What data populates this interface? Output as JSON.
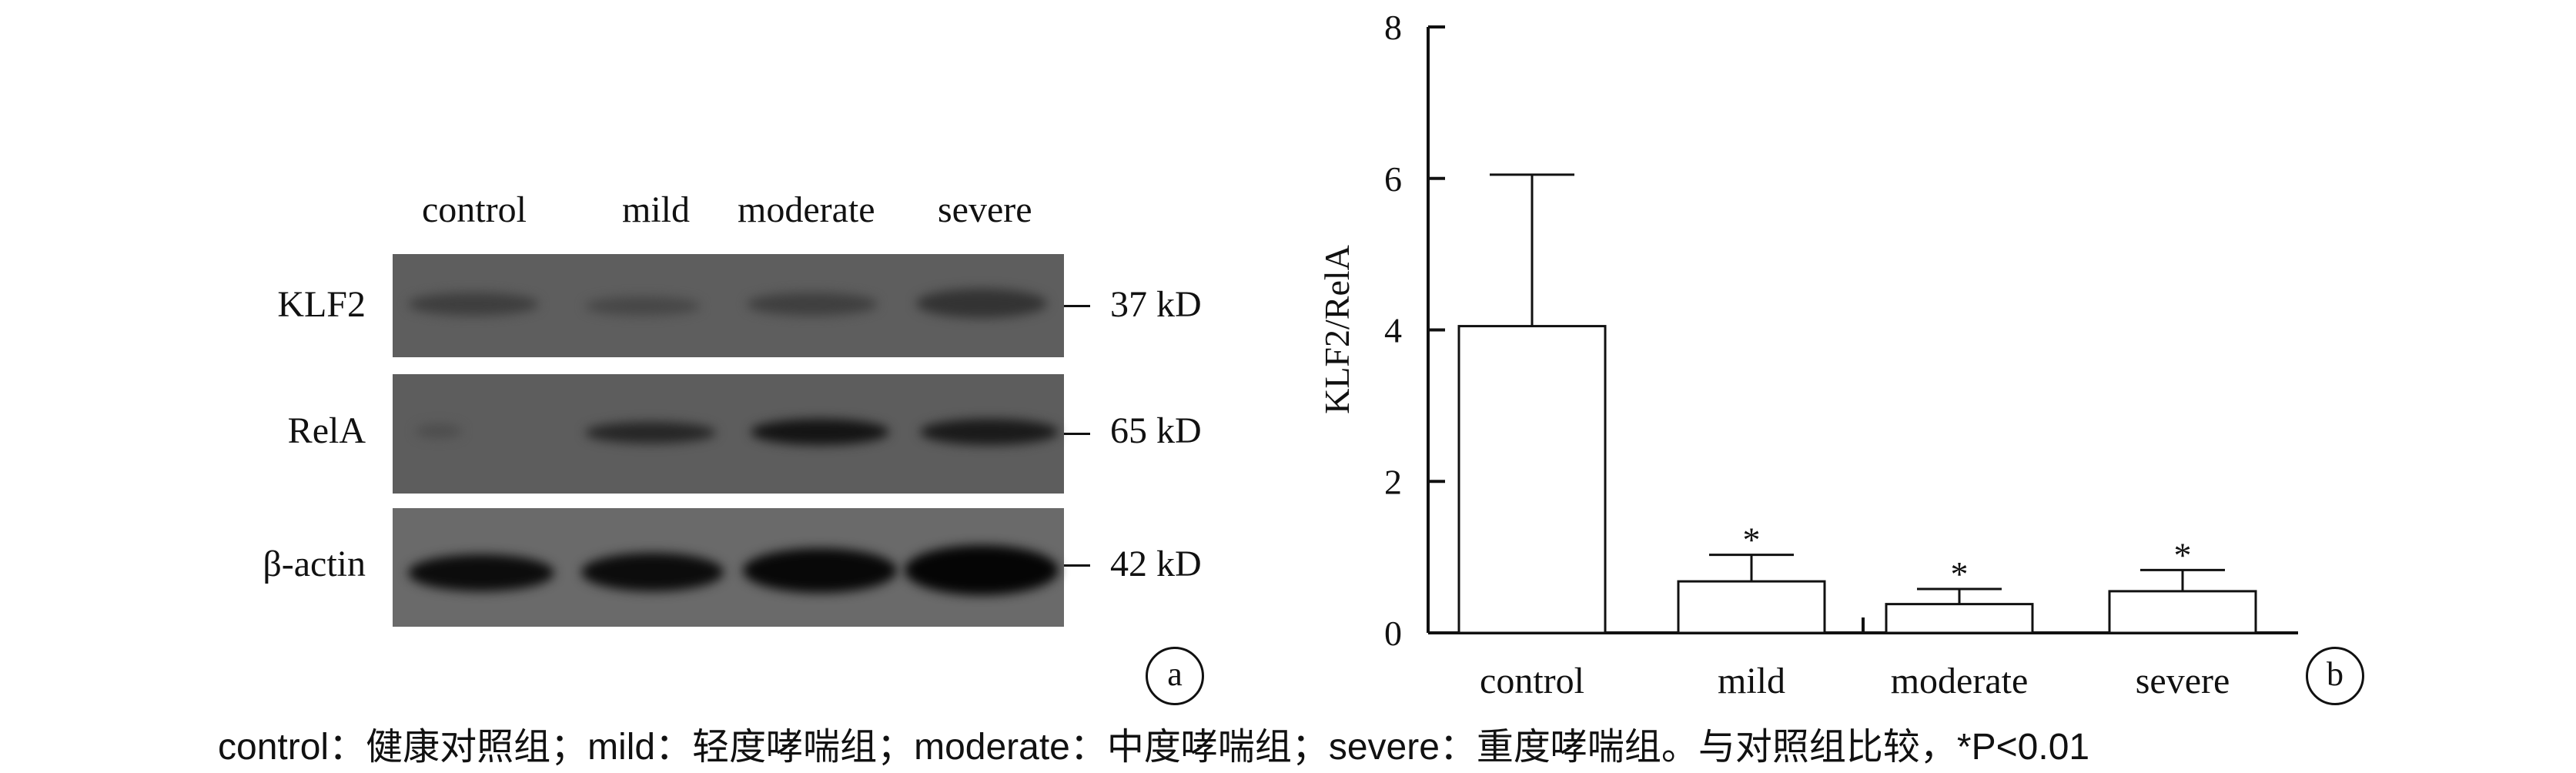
{
  "panel_a": {
    "lanes": [
      "control",
      "mild",
      "moderate",
      "severe"
    ],
    "rows": [
      {
        "label": "KLF2",
        "kd": "37 kD"
      },
      {
        "label": "RelA",
        "kd": "65 kD"
      },
      {
        "label": "β-actin",
        "kd": "42 kD"
      }
    ],
    "panel_label": "a"
  },
  "chart_data": {
    "type": "bar",
    "categories": [
      "control",
      "mild",
      "moderate",
      "severe"
    ],
    "values": [
      4.05,
      0.68,
      0.38,
      0.55
    ],
    "errors": [
      2.0,
      0.35,
      0.2,
      0.28
    ],
    "significance": [
      "",
      "*",
      "*",
      "*"
    ],
    "ylabel": "KLF2/RelA",
    "ylim": [
      0,
      8
    ],
    "yticks": [
      0,
      2,
      4,
      6,
      8
    ],
    "grid": false,
    "panel_label": "b"
  },
  "caption": "control：健康对照组；mild：轻度哮喘组；moderate：中度哮喘组；severe：重度哮喘组。与对照组比较，*P<0.01"
}
